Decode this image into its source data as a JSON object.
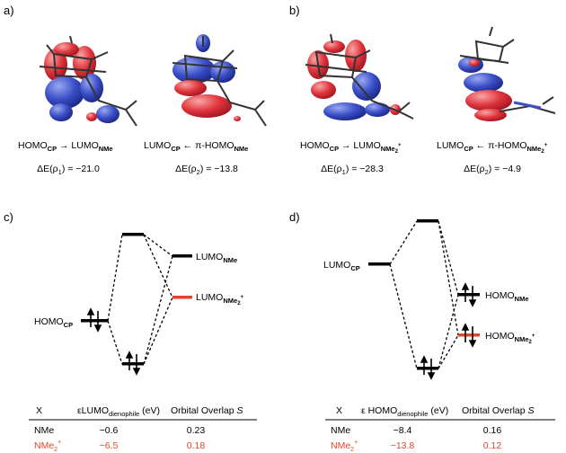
{
  "panels": {
    "a": {
      "label": "a)",
      "captions": [
        {
          "main": "HOMO",
          "sub1": "CP",
          "arrow": " → LUMO",
          "sub2": "NMe",
          "sup2": ""
        },
        {
          "main": "LUMO",
          "sub1": "CP",
          "arrow": " ← π-HOMO",
          "sub2": "NMe",
          "sup2": ""
        }
      ],
      "energies": [
        {
          "prefix": "ΔE(ρ",
          "sub": "1",
          "suffix": ") = −21.0"
        },
        {
          "prefix": "ΔE(ρ",
          "sub": "2",
          "suffix": ") = −13.8"
        }
      ]
    },
    "b": {
      "label": "b)",
      "captions": [
        {
          "main": "HOMO",
          "sub1": "CP",
          "arrow": " → LUMO",
          "sub2": "NMe",
          "sub2b": "2",
          "sup2": "+"
        },
        {
          "main": "LUMO",
          "sub1": "CP",
          "arrow": " ← π-HOMO",
          "sub2": "NMe",
          "sub2b": "2",
          "sup2": "+"
        }
      ],
      "energies": [
        {
          "prefix": "ΔE(ρ",
          "sub": "1",
          "suffix": ") = −28.3"
        },
        {
          "prefix": "ΔE(ρ",
          "sub": "2",
          "suffix": ") = −4.9"
        }
      ]
    },
    "c": {
      "label": "c)",
      "level_labels": {
        "lumo_nme": {
          "main": "LUMO",
          "sub": "NMe"
        },
        "lumo_nme2": {
          "main": "LUMO",
          "sub": "NMe",
          "sub2": "2",
          "sup": "+"
        },
        "homo_cp": {
          "main": "HOMO",
          "sub": "CP"
        }
      },
      "table": {
        "headers": [
          "X",
          "εLUMO",
          "dienophile",
          " (eV)",
          "Orbital Overlap ",
          "S"
        ],
        "rows": [
          {
            "x": "NMe",
            "x_sub": "",
            "x_sup": "",
            "e": "−0.6",
            "s": "0.23",
            "color": "#000000"
          },
          {
            "x": "NMe",
            "x_sub": "2",
            "x_sup": "+",
            "e": "−6.5",
            "s": "0.18",
            "color": "#e8442c"
          }
        ]
      }
    },
    "d": {
      "label": "d)",
      "level_labels": {
        "lumo_cp": {
          "main": "LUMO",
          "sub": "CP"
        },
        "homo_nme": {
          "main": "HOMO",
          "sub": "NMe"
        },
        "homo_nme2": {
          "main": "HOMO",
          "sub": "NMe",
          "sub2": "2",
          "sup": "+"
        }
      },
      "table": {
        "headers": [
          "X",
          "ε HOMO",
          "dienophile",
          " (eV)",
          "Orbital Overlap ",
          "S"
        ],
        "rows": [
          {
            "x": "NMe",
            "x_sub": "",
            "x_sup": "",
            "e": "−8.4",
            "s": "0.16",
            "color": "#000000"
          },
          {
            "x": "NMe",
            "x_sub": "2",
            "x_sup": "+",
            "e": "−13.8",
            "s": "0.12",
            "color": "#e8442c"
          }
        ]
      }
    }
  },
  "colors": {
    "lobe_red": "#e0343c",
    "lobe_blue": "#3a4fc8",
    "highlight": "#e8442c"
  }
}
